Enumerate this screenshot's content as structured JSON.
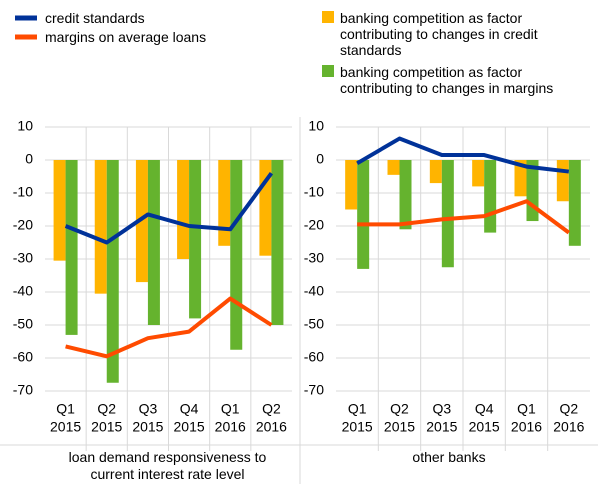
{
  "chart_data": [
    {
      "type": "bar_line",
      "categories": [
        [
          "Q1",
          "2015"
        ],
        [
          "Q2",
          "2015"
        ],
        [
          "Q3",
          "2015"
        ],
        [
          "Q4",
          "2015"
        ],
        [
          "Q1",
          "2016"
        ],
        [
          "Q2",
          "2016"
        ]
      ],
      "xlabel": "loan demand responsiveness to current interest rate level",
      "ylim": [
        -70,
        10
      ],
      "yticks": [
        10,
        0,
        -10,
        -20,
        -30,
        -40,
        -50,
        -60,
        -70
      ],
      "grid": true,
      "series": [
        {
          "name": "credit standards",
          "type": "line",
          "color": "#003299",
          "values": [
            -20,
            -25,
            -16.5,
            -20,
            -21,
            -4
          ]
        },
        {
          "name": "margins on average loans",
          "type": "line",
          "color": "#ff4b00",
          "values": [
            -56.5,
            -59.5,
            -54,
            -52,
            -42,
            -50
          ]
        },
        {
          "name": "banking competition as factor contributing to changes in credit standards",
          "type": "bar",
          "color": "#ffb400",
          "values": [
            -30.5,
            -40.5,
            -37,
            -30,
            -26,
            -29
          ]
        },
        {
          "name": "banking competition as factor contributing to changes in margins",
          "type": "bar",
          "color": "#65b32e",
          "values": [
            -53,
            -67.5,
            -50,
            -48,
            -57.5,
            -50
          ]
        }
      ]
    },
    {
      "type": "bar_line",
      "categories": [
        [
          "Q1",
          "2015"
        ],
        [
          "Q2",
          "2015"
        ],
        [
          "Q3",
          "2015"
        ],
        [
          "Q4",
          "2015"
        ],
        [
          "Q1",
          "2016"
        ],
        [
          "Q2",
          "2016"
        ]
      ],
      "xlabel": "other banks",
      "ylim": [
        -70,
        10
      ],
      "yticks": [
        10,
        0,
        -10,
        -20,
        -30,
        -40,
        -50,
        -60,
        -70
      ],
      "grid": true,
      "series": [
        {
          "name": "credit standards",
          "type": "line",
          "color": "#003299",
          "values": [
            -1,
            6.5,
            1.5,
            1.5,
            -2,
            -3.5
          ]
        },
        {
          "name": "margins on average loans",
          "type": "line",
          "color": "#ff4b00",
          "values": [
            -19.5,
            -19.5,
            -18,
            -17,
            -12.5,
            -22
          ]
        },
        {
          "name": "banking competition as factor contributing to changes in credit standards",
          "type": "bar",
          "color": "#ffb400",
          "values": [
            -15,
            -4.5,
            -7,
            -8,
            -11,
            -12.5
          ]
        },
        {
          "name": "banking competition as factor contributing to changes in margins",
          "type": "bar",
          "color": "#65b32e",
          "values": [
            -33,
            -21,
            -32.5,
            -22,
            -18.5,
            -26
          ]
        }
      ]
    }
  ]
}
